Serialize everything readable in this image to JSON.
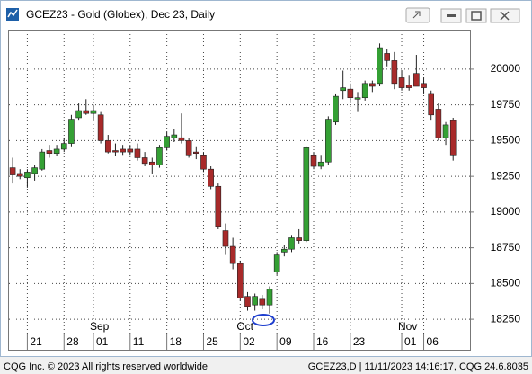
{
  "chart_data": {
    "type": "candlestick",
    "title": "GCEZ23 - Gold (Globex), Dec 23, Daily",
    "open": [
      19310,
      19270,
      19240,
      19270,
      19300,
      19430,
      19410,
      19440,
      19480,
      19660,
      19710,
      19690,
      19680,
      19500,
      19430,
      19440,
      19440,
      19440,
      19380,
      19350,
      19330,
      19450,
      19520,
      19520,
      19500,
      19420,
      19400,
      19300,
      19180,
      18870,
      18760,
      18640,
      18410,
      18350,
      18390,
      18350,
      18580,
      18720,
      18740,
      18820,
      18800,
      19400,
      19320,
      19350,
      19630,
      19850,
      19860,
      19790,
      19800,
      19900,
      19900,
      20110,
      20060,
      19940,
      19890,
      19970,
      19900,
      19830,
      19720,
      19520,
      19640
    ],
    "high": [
      19380,
      19300,
      19300,
      19330,
      19440,
      19470,
      19470,
      19520,
      19680,
      19760,
      19790,
      19750,
      19700,
      19540,
      19480,
      19470,
      19470,
      19480,
      19420,
      19380,
      19470,
      19560,
      19580,
      19690,
      19520,
      19460,
      19420,
      19320,
      19200,
      18920,
      18820,
      18660,
      18440,
      18430,
      18420,
      18480,
      18720,
      18770,
      18840,
      18880,
      19460,
      19420,
      19400,
      19670,
      19830,
      19990,
      19900,
      19840,
      19920,
      19920,
      20180,
      20140,
      20120,
      19990,
      19960,
      20100,
      19940,
      19850,
      19760,
      19630,
      19660
    ],
    "low": [
      19200,
      19230,
      19170,
      19220,
      19290,
      19380,
      19390,
      19420,
      19460,
      19640,
      19680,
      19640,
      19480,
      19410,
      19390,
      19400,
      19400,
      19360,
      19320,
      19270,
      19310,
      19430,
      19490,
      19480,
      19380,
      19370,
      19280,
      19160,
      18880,
      18700,
      18600,
      18380,
      18310,
      18310,
      18320,
      18290,
      18560,
      18690,
      18720,
      18780,
      18790,
      19300,
      19300,
      19330,
      19610,
      19790,
      19770,
      19700,
      19780,
      19840,
      19880,
      20020,
      19860,
      19850,
      19850,
      19880,
      19830,
      19640,
      19500,
      19470,
      19360
    ],
    "close": [
      19260,
      19250,
      19280,
      19310,
      19420,
      19410,
      19440,
      19480,
      19650,
      19710,
      19690,
      19710,
      19500,
      19420,
      19420,
      19420,
      19420,
      19380,
      19340,
      19330,
      19450,
      19530,
      19540,
      19500,
      19400,
      19410,
      19300,
      19180,
      18900,
      18760,
      18640,
      18400,
      18340,
      18410,
      18350,
      18460,
      18700,
      18740,
      18820,
      18800,
      19450,
      19320,
      19350,
      19650,
      19810,
      19870,
      19800,
      19800,
      19900,
      19880,
      20150,
      20060,
      19900,
      19870,
      19870,
      19880,
      19870,
      19680,
      19520,
      19610,
      19400
    ],
    "up_color": "#34a034",
    "down_color": "#a82a2a",
    "ylim": [
      18150,
      20270
    ],
    "yticks": [
      18250,
      18500,
      18750,
      19000,
      19250,
      19500,
      19750,
      20000
    ],
    "xlim": [
      -0.5,
      62.3
    ],
    "xticks": [
      {
        "value": 2,
        "label": "21"
      },
      {
        "value": 7,
        "label": "28"
      },
      {
        "value": 11,
        "label": "01"
      },
      {
        "value": 16,
        "label": "11"
      },
      {
        "value": 21,
        "label": "18"
      },
      {
        "value": 26,
        "label": "25"
      },
      {
        "value": 31,
        "label": "02"
      },
      {
        "value": 36,
        "label": "09"
      },
      {
        "value": 41,
        "label": "16"
      },
      {
        "value": 46,
        "label": "23"
      },
      {
        "value": 53,
        "label": "01"
      },
      {
        "value": 56,
        "label": "06"
      }
    ],
    "months": [
      {
        "value": 11,
        "label": "Sep"
      },
      {
        "value": 31,
        "label": "Oct"
      },
      {
        "value": 53,
        "label": "Nov"
      }
    ],
    "grid": true,
    "y_axis_side": "right"
  },
  "footer": {
    "left": "CQG Inc. © 2023 All rights reserved worldwide",
    "right": "GCEZ23,D | 11/11/2023 14:16:17, CQG 24.6.8035"
  }
}
